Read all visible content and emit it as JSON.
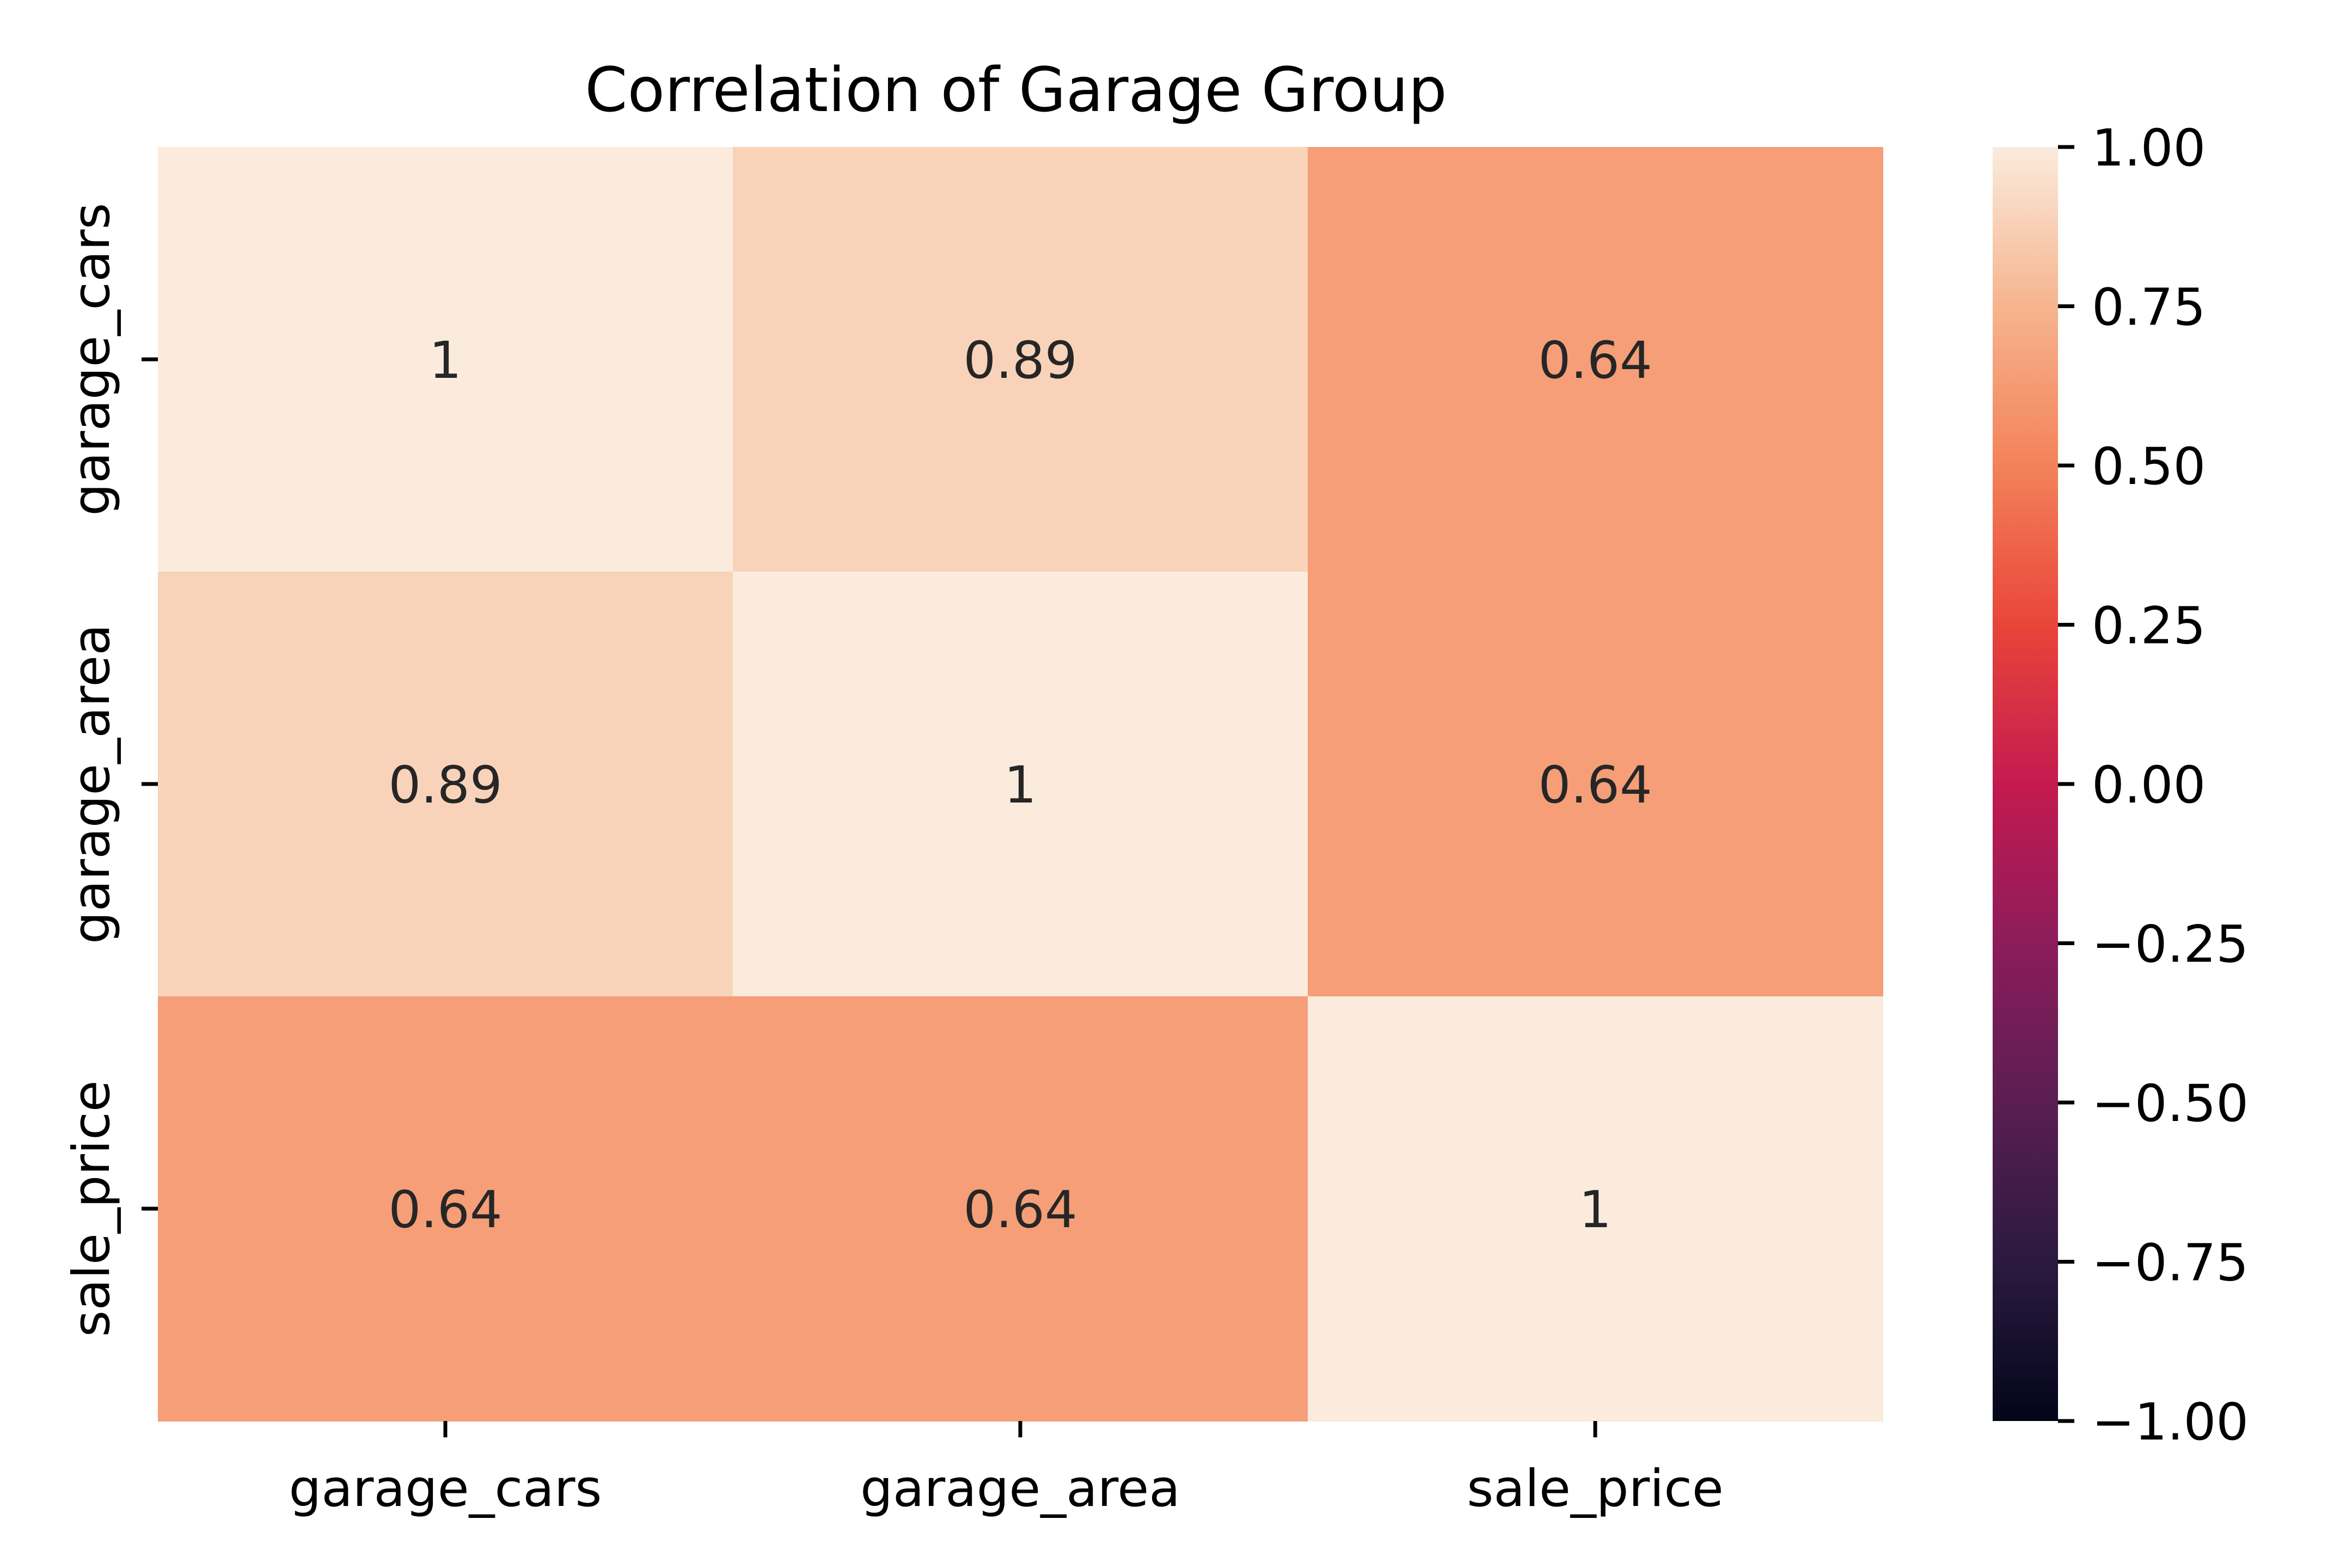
{
  "chart_data": {
    "type": "heatmap",
    "title": "Correlation of Garage Group",
    "rows": [
      "garage_cars",
      "garage_area",
      "sale_price"
    ],
    "columns": [
      "garage_cars",
      "garage_area",
      "sale_price"
    ],
    "values": [
      [
        1.0,
        0.89,
        0.64
      ],
      [
        0.89,
        1.0,
        0.64
      ],
      [
        0.64,
        0.64,
        1.0
      ]
    ],
    "cell_labels": [
      [
        "1",
        "0.89",
        "0.64"
      ],
      [
        "0.89",
        "1",
        "0.64"
      ],
      [
        "0.64",
        "0.64",
        "1"
      ]
    ],
    "colorbar": {
      "range": [
        -1.0,
        1.0
      ],
      "ticks": [
        1.0,
        0.75,
        0.5,
        0.25,
        0.0,
        -0.25,
        -0.5,
        -0.75,
        -1.0
      ],
      "tick_labels": [
        "1.00",
        "0.75",
        "0.50",
        "0.25",
        "0.00",
        "−0.25",
        "−0.50",
        "−0.75",
        "−1.00"
      ],
      "colormap": "rocket",
      "colors": [
        "#03051a",
        "#2b1a40",
        "#5a1e52",
        "#8c1c5b",
        "#c41a4f",
        "#e9453a",
        "#f3825a",
        "#f6b48e",
        "#faebdd"
      ]
    }
  }
}
